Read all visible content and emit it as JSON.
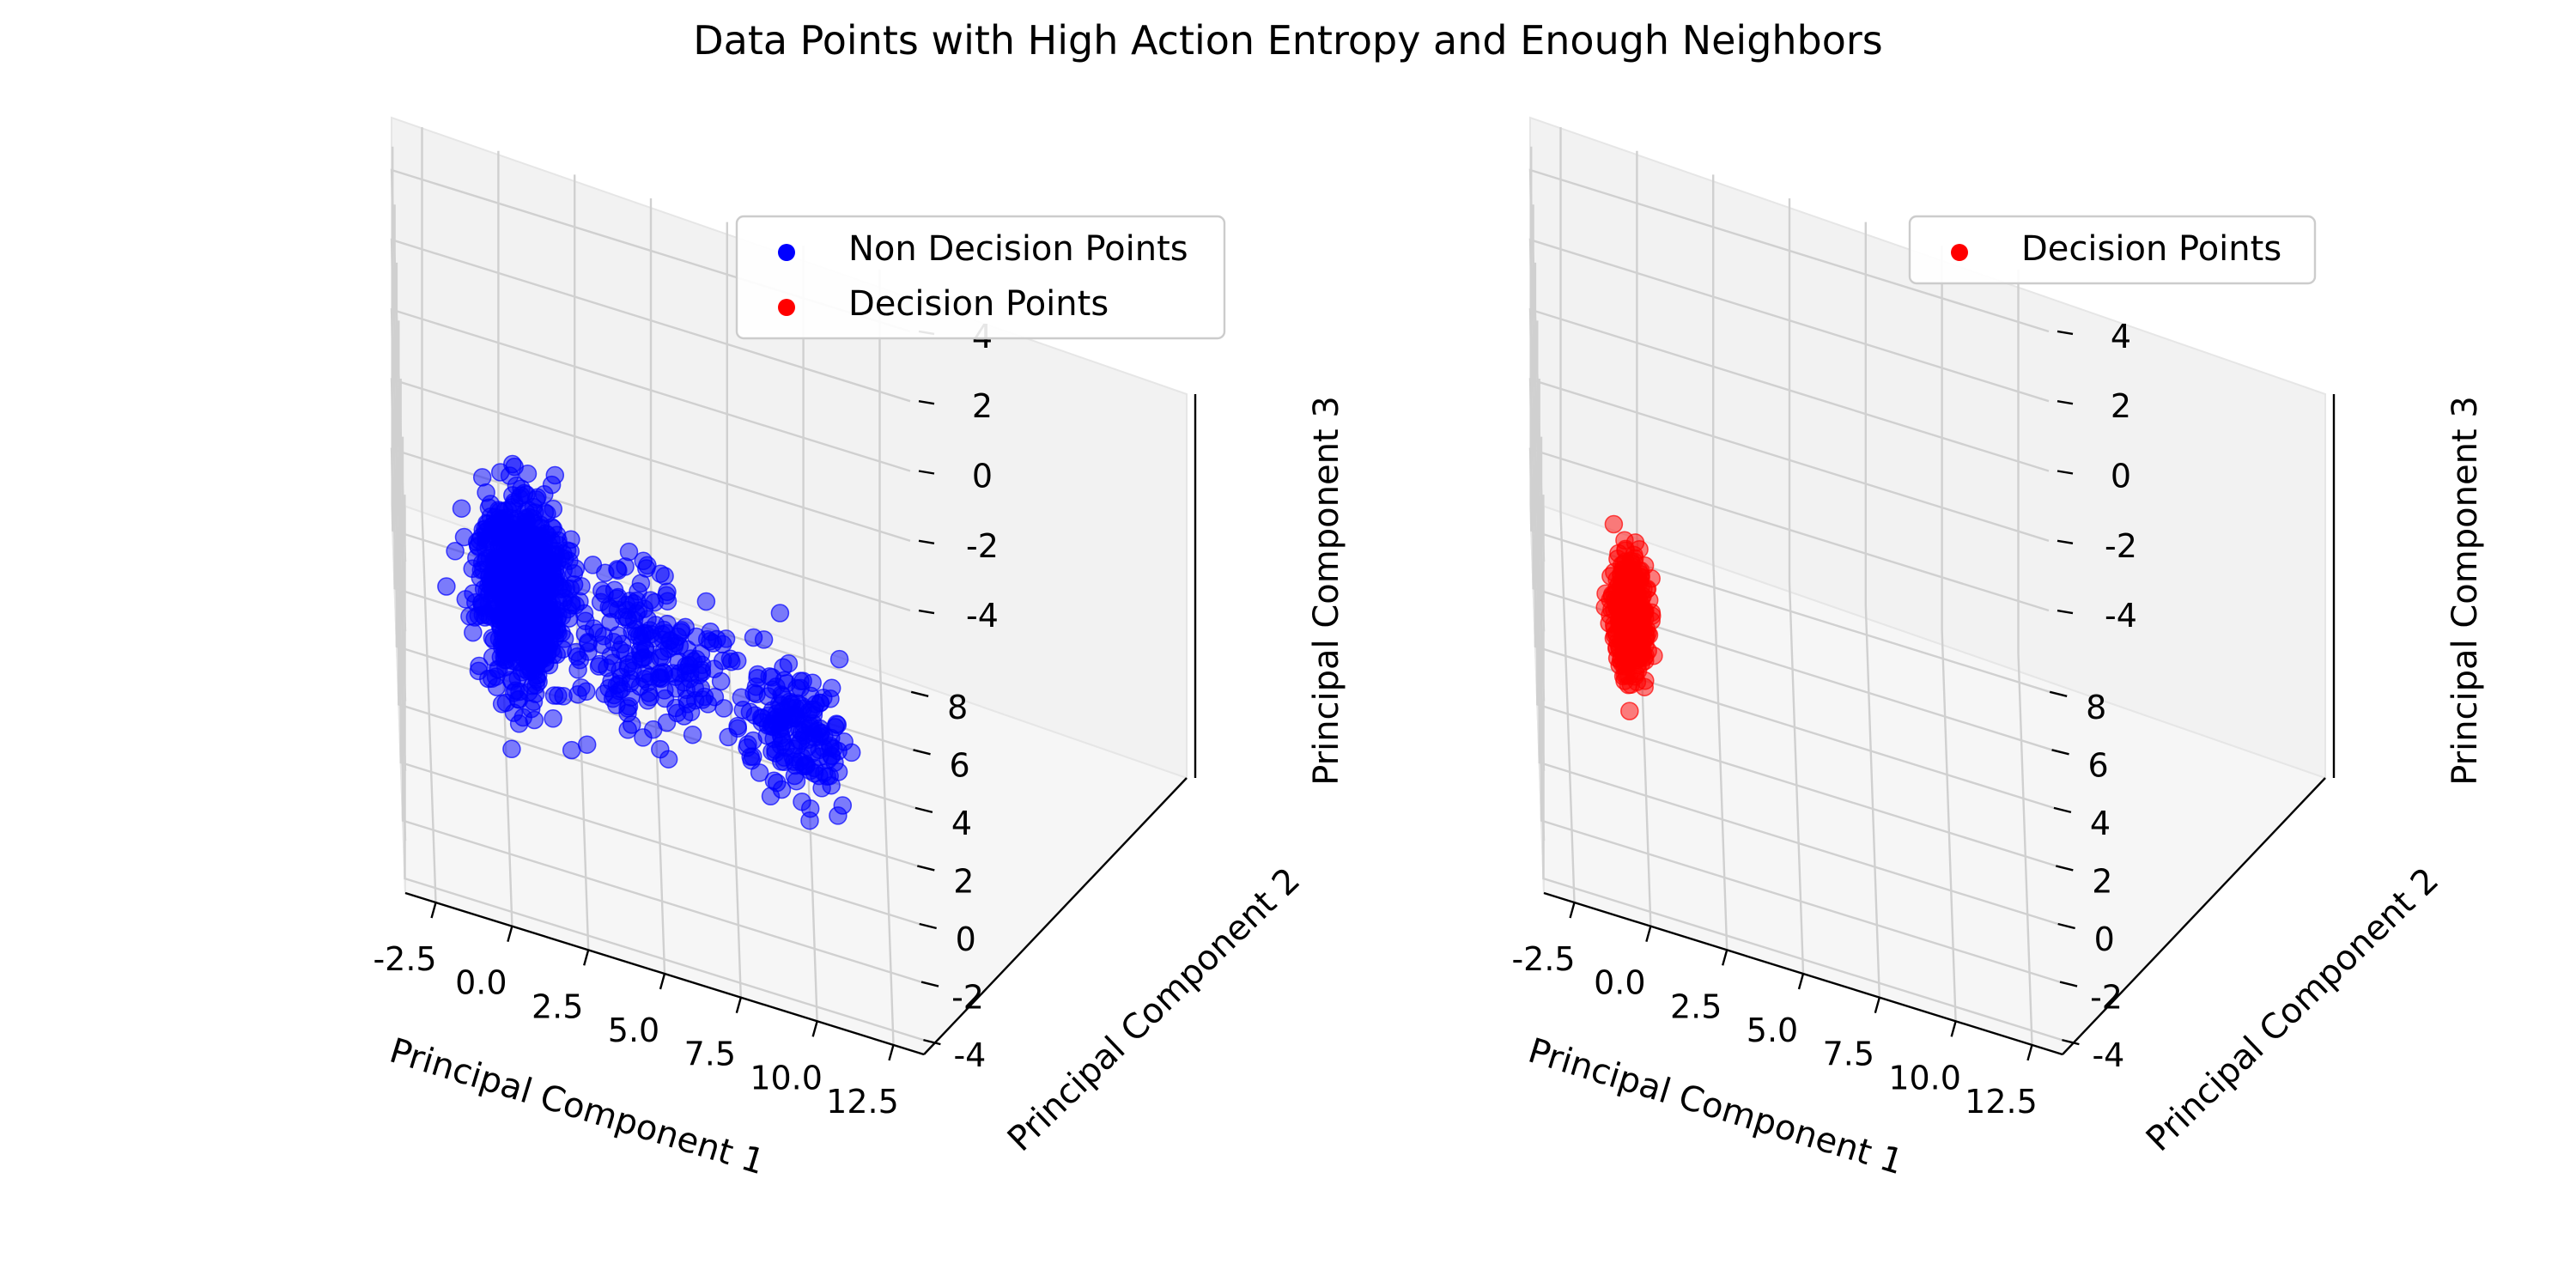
{
  "figure_title": "Data Points with High Action Entropy and Enough Neighbors",
  "chart_data": [
    {
      "type": "scatter",
      "projection": "3d",
      "xlabel": "Principal Component 1",
      "ylabel": "Principal Component 2",
      "zlabel": "Principal Component 3",
      "xlim": [
        -3.5,
        13.5
      ],
      "ylim": [
        -4.5,
        9
      ],
      "zlim": [
        -5.5,
        5.5
      ],
      "xticks": [
        "-2.5",
        "0.0",
        "2.5",
        "5.0",
        "7.5",
        "10.0",
        "12.5"
      ],
      "yticks": [
        "-4",
        "-2",
        "0",
        "2",
        "4",
        "6",
        "8"
      ],
      "zticks": [
        "-4",
        "-2",
        "0",
        "2",
        "4"
      ],
      "grid": true,
      "legend": {
        "location": "upper-right",
        "entries": [
          "Non Decision Points",
          "Decision Points"
        ]
      },
      "series": [
        {
          "name": "Non Decision Points",
          "color": "#0000ff",
          "alpha": 0.5,
          "clusters": [
            {
              "center": [
                0.5,
                0.5,
                0.0
              ],
              "spread": [
                1.2,
                1.4,
                2.0
              ],
              "count": 900
            },
            {
              "center": [
                4.5,
                1.0,
                -1.0
              ],
              "spread": [
                2.5,
                1.5,
                1.6
              ],
              "count": 220
            },
            {
              "center": [
                9.5,
                1.5,
                -2.2
              ],
              "spread": [
                1.6,
                1.6,
                1.4
              ],
              "count": 170
            }
          ]
        },
        {
          "name": "Decision Points",
          "color": "#ff0000",
          "alpha": 0.5,
          "clusters": []
        }
      ]
    },
    {
      "type": "scatter",
      "projection": "3d",
      "xlabel": "Principal Component 1",
      "ylabel": "Principal Component 2",
      "zlabel": "Principal Component 3",
      "xlim": [
        -3.5,
        13.5
      ],
      "ylim": [
        -4.5,
        9
      ],
      "zlim": [
        -5.5,
        5.5
      ],
      "xticks": [
        "-2.5",
        "0.0",
        "2.5",
        "5.0",
        "7.5",
        "10.0",
        "12.5"
      ],
      "yticks": [
        "-4",
        "-2",
        "0",
        "2",
        "4",
        "6",
        "8"
      ],
      "zticks": [
        "-4",
        "-2",
        "0",
        "2",
        "4"
      ],
      "grid": true,
      "legend": {
        "location": "upper-right",
        "entries": [
          "Decision Points"
        ]
      },
      "series": [
        {
          "name": "Decision Points",
          "color": "#ff0000",
          "alpha": 0.5,
          "clusters": [
            {
              "center": [
                -0.5,
                0.0,
                -0.5
              ],
              "spread": [
                0.5,
                0.5,
                1.5
              ],
              "count": 400
            }
          ]
        }
      ]
    }
  ]
}
